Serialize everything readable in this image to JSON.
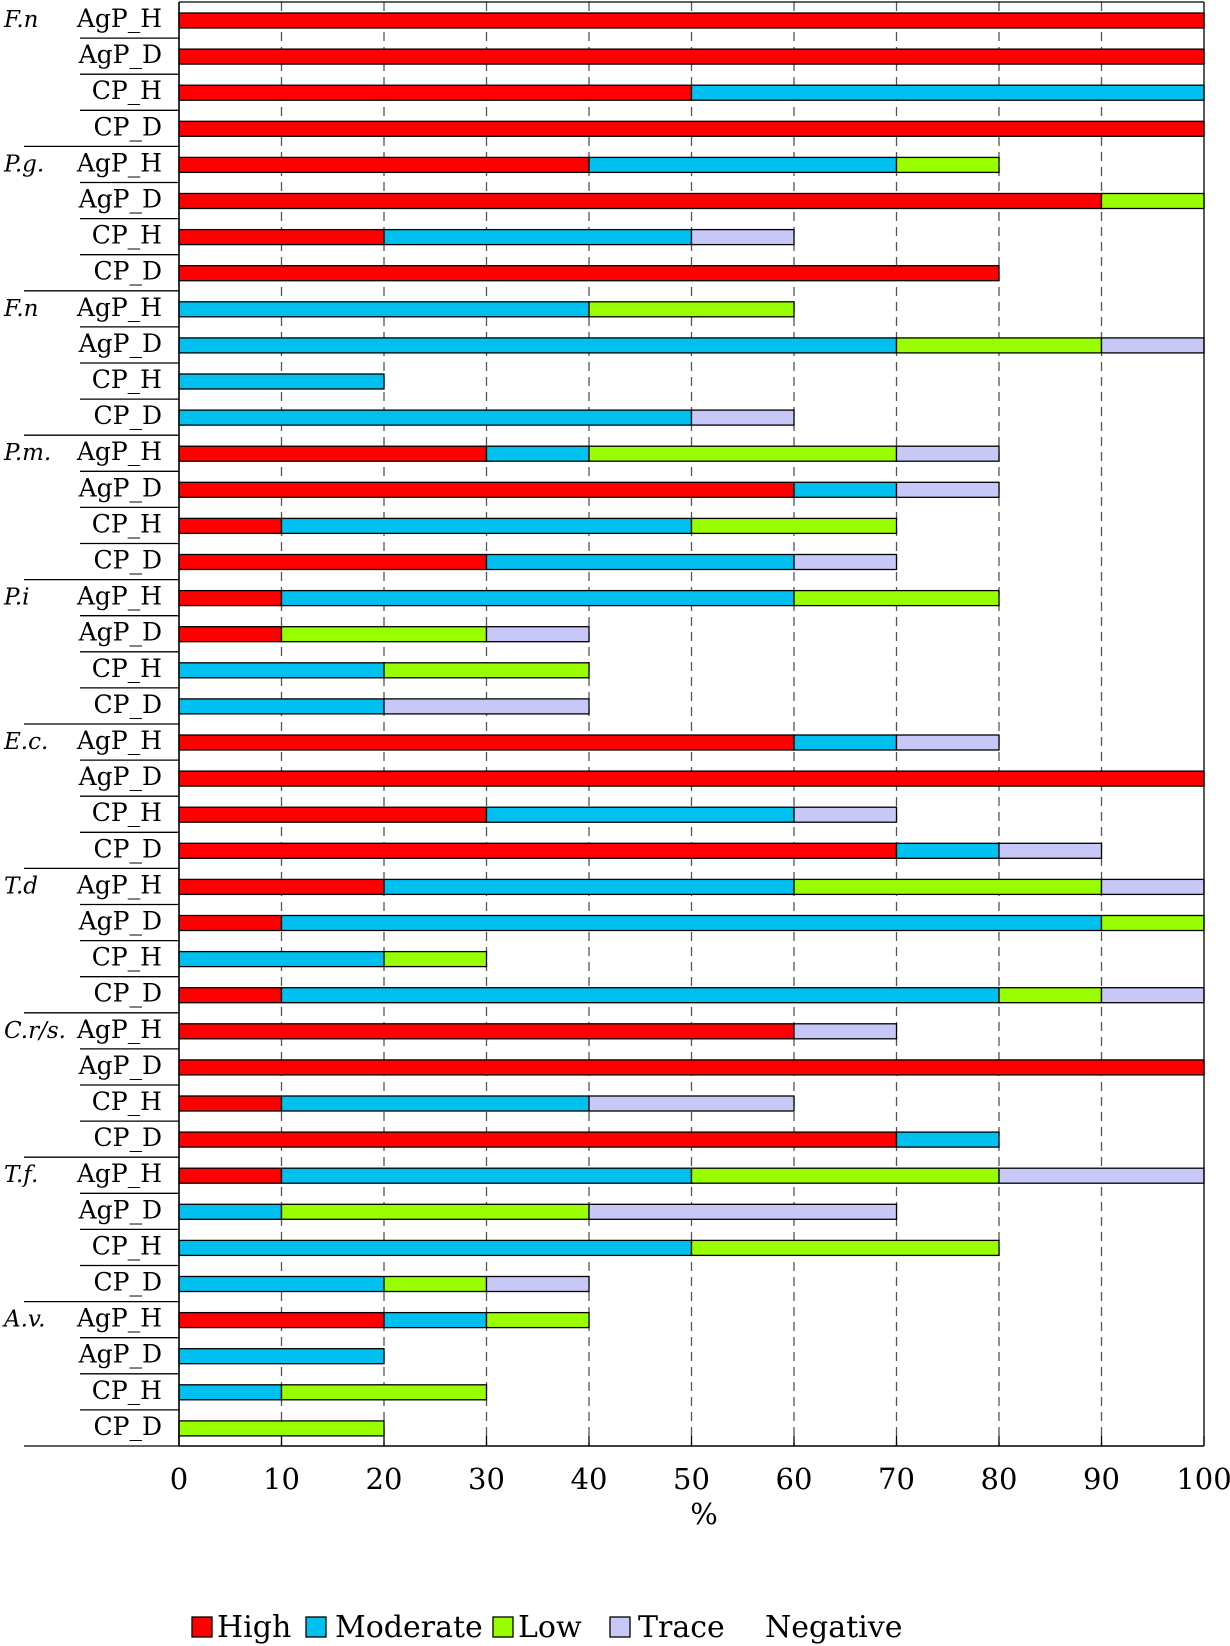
{
  "chart_data": {
    "type": "bar",
    "orientation": "horizontal",
    "stacked": true,
    "title": "",
    "xlabel": "%",
    "ylabel": "",
    "xlim": [
      0,
      100
    ],
    "xticks": [
      "0",
      "10",
      "20",
      "30",
      "40",
      "50",
      "60",
      "70",
      "80",
      "90",
      "100"
    ],
    "grid": "vertical dashed",
    "legend_position": "bottom",
    "series": [
      {
        "name": "High",
        "color": "#ff0000"
      },
      {
        "name": "Moderate",
        "color": "#00c0f0"
      },
      {
        "name": "Low",
        "color": "#99ff00"
      },
      {
        "name": "Trace",
        "color": "#c8c8f8"
      },
      {
        "name": "Negative",
        "color": "#ffffff"
      }
    ],
    "groups": [
      {
        "label": "F.n",
        "rows": [
          {
            "label": "AgP_H",
            "values": [
              100,
              0,
              0,
              0
            ]
          },
          {
            "label": "AgP_D",
            "values": [
              100,
              0,
              0,
              0
            ]
          },
          {
            "label": "CP_H",
            "values": [
              50,
              50,
              0,
              0
            ]
          },
          {
            "label": "CP_D",
            "values": [
              100,
              0,
              0,
              0
            ]
          }
        ]
      },
      {
        "label": "P.g.",
        "rows": [
          {
            "label": "AgP_H",
            "values": [
              40,
              30,
              10,
              0
            ]
          },
          {
            "label": "AgP_D",
            "values": [
              90,
              0,
              10,
              0
            ]
          },
          {
            "label": "CP_H",
            "values": [
              20,
              30,
              0,
              10
            ]
          },
          {
            "label": "CP_D",
            "values": [
              80,
              0,
              0,
              0
            ]
          }
        ]
      },
      {
        "label": "F.n",
        "rows": [
          {
            "label": "AgP_H",
            "values": [
              0,
              40,
              20,
              0
            ]
          },
          {
            "label": "AgP_D",
            "values": [
              0,
              70,
              20,
              10
            ]
          },
          {
            "label": "CP_H",
            "values": [
              0,
              20,
              0,
              0
            ]
          },
          {
            "label": "CP_D",
            "values": [
              0,
              50,
              0,
              10
            ]
          }
        ]
      },
      {
        "label": "P.m.",
        "rows": [
          {
            "label": "AgP_H",
            "values": [
              30,
              10,
              30,
              10
            ]
          },
          {
            "label": "AgP_D",
            "values": [
              60,
              10,
              0,
              10
            ]
          },
          {
            "label": "CP_H",
            "values": [
              10,
              40,
              20,
              0
            ]
          },
          {
            "label": "CP_D",
            "values": [
              30,
              30,
              0,
              10
            ]
          }
        ]
      },
      {
        "label": "P.i",
        "rows": [
          {
            "label": "AgP_H",
            "values": [
              10,
              50,
              20,
              0
            ]
          },
          {
            "label": "AgP_D",
            "values": [
              10,
              0,
              20,
              10
            ]
          },
          {
            "label": "CP_H",
            "values": [
              0,
              20,
              20,
              0
            ]
          },
          {
            "label": "CP_D",
            "values": [
              0,
              20,
              0,
              20
            ]
          }
        ]
      },
      {
        "label": "E.c.",
        "rows": [
          {
            "label": "AgP_H",
            "values": [
              60,
              10,
              0,
              10
            ]
          },
          {
            "label": "AgP_D",
            "values": [
              100,
              0,
              0,
              0
            ]
          },
          {
            "label": "CP_H",
            "values": [
              30,
              30,
              0,
              10
            ]
          },
          {
            "label": "CP_D",
            "values": [
              70,
              10,
              0,
              10
            ]
          }
        ]
      },
      {
        "label": "T.d",
        "rows": [
          {
            "label": "AgP_H",
            "values": [
              20,
              40,
              30,
              10
            ]
          },
          {
            "label": "AgP_D",
            "values": [
              10,
              80,
              10,
              0
            ]
          },
          {
            "label": "CP_H",
            "values": [
              0,
              20,
              10,
              0
            ]
          },
          {
            "label": "CP_D",
            "values": [
              10,
              70,
              10,
              10
            ]
          }
        ]
      },
      {
        "label": "C.r/s.",
        "rows": [
          {
            "label": "AgP_H",
            "values": [
              60,
              0,
              0,
              10
            ]
          },
          {
            "label": "AgP_D",
            "values": [
              100,
              0,
              0,
              0
            ]
          },
          {
            "label": "CP_H",
            "values": [
              10,
              30,
              0,
              20
            ]
          },
          {
            "label": "CP_D",
            "values": [
              70,
              10,
              0,
              0
            ]
          }
        ]
      },
      {
        "label": "T.f.",
        "rows": [
          {
            "label": "AgP_H",
            "values": [
              10,
              40,
              30,
              20
            ]
          },
          {
            "label": "AgP_D",
            "values": [
              0,
              10,
              30,
              30
            ]
          },
          {
            "label": "CP_H",
            "values": [
              0,
              50,
              30,
              0
            ]
          },
          {
            "label": "CP_D",
            "values": [
              0,
              20,
              10,
              10
            ]
          }
        ]
      },
      {
        "label": "A.v.",
        "rows": [
          {
            "label": "AgP_H",
            "values": [
              20,
              10,
              10,
              0
            ]
          },
          {
            "label": "AgP_D",
            "values": [
              0,
              20,
              0,
              0
            ]
          },
          {
            "label": "CP_H",
            "values": [
              0,
              10,
              20,
              0
            ]
          },
          {
            "label": "CP_D",
            "values": [
              0,
              0,
              20,
              0
            ]
          }
        ]
      }
    ]
  }
}
